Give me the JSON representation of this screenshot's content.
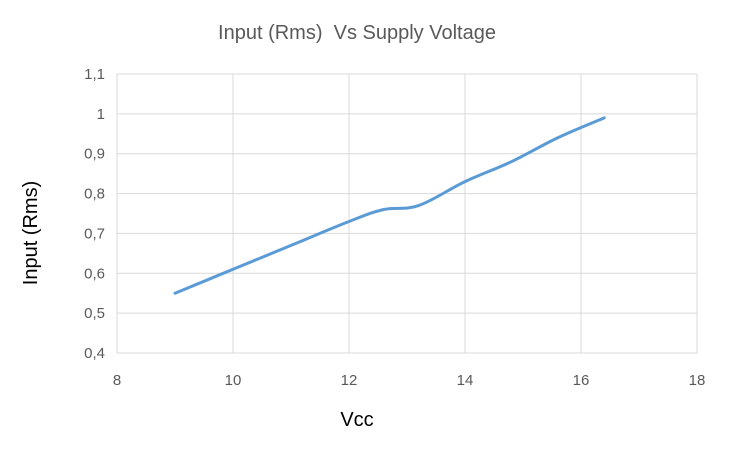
{
  "chart_data": {
    "type": "scatter",
    "title": "Input (Rms)  Vs Supply Voltage",
    "xlabel": "Vcc",
    "ylabel": "Input (Rms)",
    "xlim": [
      8,
      18
    ],
    "ylim": [
      0.4,
      1.1
    ],
    "x_ticks": [
      "8",
      "10",
      "12",
      "14",
      "16",
      "18"
    ],
    "y_ticks": [
      "0,4",
      "0,5",
      "0,6",
      "0,7",
      "0,8",
      "0,9",
      "1",
      "1,1"
    ],
    "grid": true,
    "legend": "none",
    "series": [
      {
        "color": "#5b9bd5",
        "smooth": true,
        "x": [
          9,
          10,
          11,
          12,
          12.6,
          13.2,
          14,
          14.8,
          15.6,
          16.4
        ],
        "y": [
          0.55,
          0.61,
          0.67,
          0.73,
          0.76,
          0.77,
          0.83,
          0.88,
          0.94,
          0.99
        ]
      }
    ]
  }
}
